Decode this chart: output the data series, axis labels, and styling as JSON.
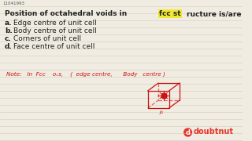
{
  "bg_color": "#f0ece2",
  "line_color": "#c8c0b0",
  "question_id": "11041993",
  "title_prefix": "Position of octahedral voids in ",
  "title_highlight": "fcc st",
  "title_suffix": "ructure is/are",
  "options": [
    {
      "label": "a.",
      "text": "Edge centre of unit cell"
    },
    {
      "label": "b.",
      "text": "Body centre of unit cell"
    },
    {
      "label": "c.",
      "text": "Corners of unit cell"
    },
    {
      "label": "d.",
      "text": "Face centre of unit cell"
    }
  ],
  "note_text": "Note:   In  Fcc    oᵥs,    (  edge centre,      Body   centre )",
  "text_color": "#222222",
  "highlight_color": "#f0e830",
  "red_color": "#cc1111",
  "logo_text": "doubtnut",
  "logo_color": "#e8342a"
}
